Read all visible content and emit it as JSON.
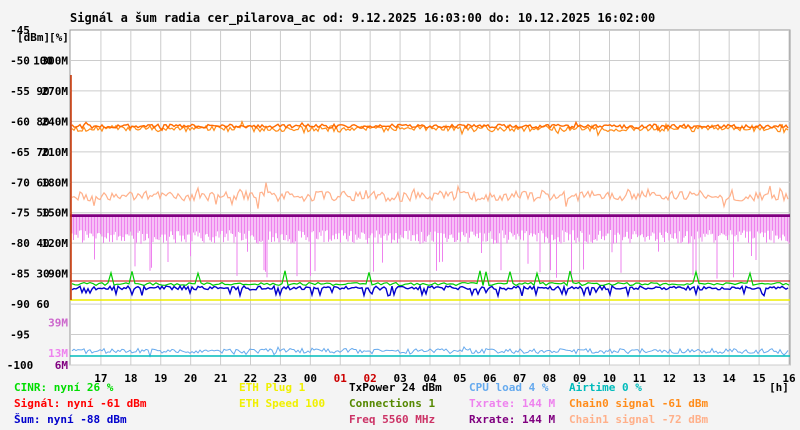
{
  "title": "Signál a šum radia cer_pilarova_ac od: 9.12.2025 16:03:00 do: 10.12.2025 16:02:00",
  "chart_data": {
    "type": "line",
    "x_unit": "[h]",
    "x_ticks": [
      "17",
      "18",
      "19",
      "20",
      "21",
      "22",
      "23",
      "00",
      "01",
      "02",
      "03",
      "04",
      "05",
      "06",
      "07",
      "08",
      "09",
      "10",
      "11",
      "12",
      "13",
      "14",
      "15",
      "16"
    ],
    "axis_header": {
      "top_value": "-45",
      "unit_dbm": "[dBm]",
      "unit_pct": "[%]"
    },
    "y_dbm_ticks": [
      "-50",
      "-55",
      "-60",
      "-65",
      "-70",
      "-75",
      "-80",
      "-85",
      "-90",
      "-95",
      "-100"
    ],
    "y_pct_ticks": [
      "100",
      "90",
      "80",
      "70",
      "60",
      "50",
      "40",
      "30",
      "60"
    ],
    "y_rate_ticks": [
      "300M",
      "270M",
      "240M",
      "210M",
      "180M",
      "150M",
      "120M",
      "90M",
      "39M",
      "13M",
      "6M"
    ],
    "ylim_dbm": [
      -100,
      -45
    ],
    "grid": true,
    "series": [
      {
        "name": "Signál",
        "unit": "dBm",
        "color": "#ff6a00",
        "typical": -61
      },
      {
        "name": "Chain0 signal",
        "unit": "dBm",
        "color": "#ff8c1a",
        "typical": -61
      },
      {
        "name": "Chain1 signal",
        "unit": "dBm",
        "color": "#ffb08a",
        "typical": -72
      },
      {
        "name": "Txrate",
        "unit": "Mbit/s",
        "color": "#ee82ee",
        "typical": 144
      },
      {
        "name": "Rxrate",
        "unit": "Mbit/s",
        "color": "#800080",
        "typical": 144
      },
      {
        "name": "Šum",
        "unit": "dBm",
        "color": "#0000cc",
        "typical": -88
      },
      {
        "name": "CINR",
        "unit": "%",
        "color": "#00cc00",
        "typical": 26
      },
      {
        "name": "CPU load",
        "unit": "%",
        "color": "#66aaee",
        "typical": 4
      },
      {
        "name": "Airtime",
        "unit": "%",
        "color": "#00bbbb",
        "typical": 0
      }
    ],
    "legend": [
      [
        {
          "text": "CINR: nyní 26 %",
          "color": "#00dd00"
        },
        {
          "text": "Signál: nyní -61 dBm",
          "color": "#ff0000"
        },
        {
          "text": "Šum: nyní -88 dBm",
          "color": "#0000cc"
        }
      ],
      [
        {
          "text": "ETH Plug 1",
          "color": "#f0f000"
        },
        {
          "text": "ETH Speed 100",
          "color": "#f0f000"
        }
      ],
      [
        {
          "text": "TxPower 24 dBm",
          "color": "#000000"
        },
        {
          "text": "Connections 1",
          "color": "#558800"
        },
        {
          "text": "Freq 5560 MHz",
          "color": "#cc3366"
        }
      ],
      [
        {
          "text": "CPU load 4 %",
          "color": "#66aaee"
        },
        {
          "text": "Txrate: 144 M",
          "color": "#ee82ee"
        },
        {
          "text": "Rxrate: 144 M",
          "color": "#800080"
        }
      ],
      [
        {
          "text": "Airtime 0 %",
          "color": "#00bbbb"
        },
        {
          "text": "Chain0 signal -61 dBm",
          "color": "#ff8c1a"
        },
        {
          "text": "Chain1 signal -72 dBm",
          "color": "#ffb08a"
        }
      ]
    ]
  }
}
